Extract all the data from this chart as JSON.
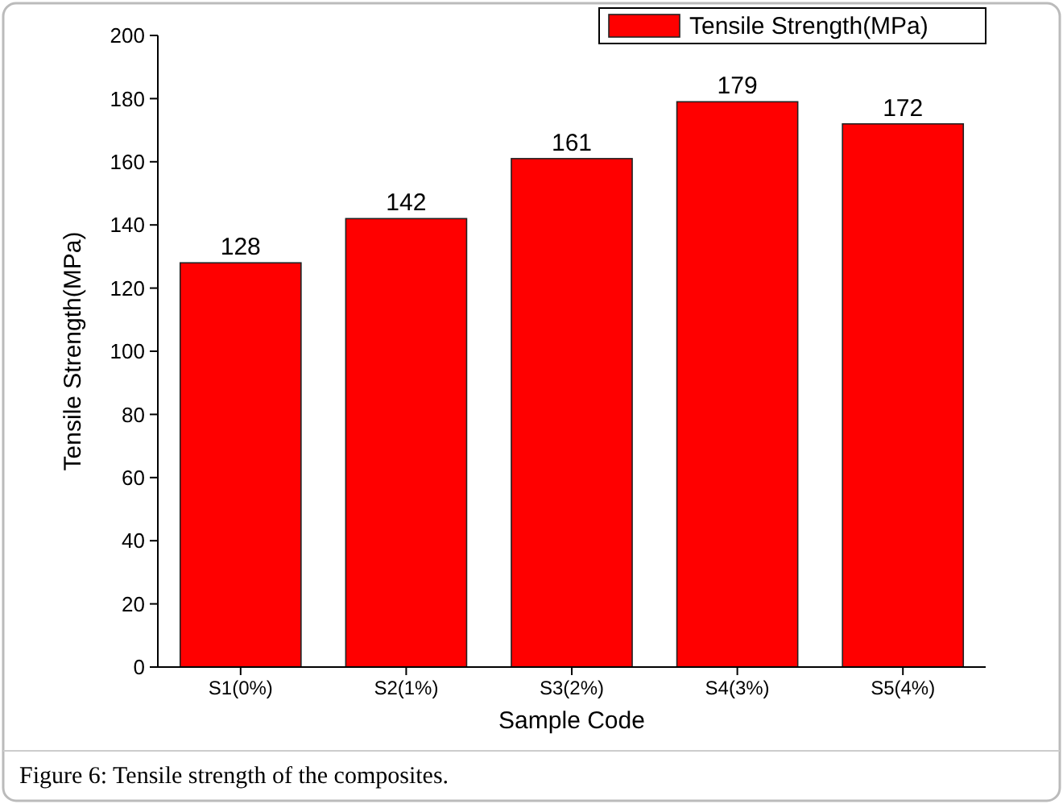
{
  "chart_data": {
    "type": "bar",
    "xlabel": "Sample Code",
    "ylabel": "Tensile Strength(MPa)",
    "categories": [
      "S1(0%)",
      "S2(1%)",
      "S3(2%)",
      "S4(3%)",
      "S5(4%)"
    ],
    "series": [
      {
        "name": "Tensile Strength(MPa)",
        "color": "#ff0000",
        "values": [
          128,
          142,
          161,
          179,
          172
        ]
      }
    ],
    "ylim": [
      0,
      200
    ],
    "yticks": [
      0,
      20,
      40,
      60,
      80,
      100,
      120,
      140,
      160,
      180,
      200
    ],
    "data_labels": true,
    "legend": "top right",
    "grid": false,
    "annotations": [
      "Figure 6: Tensile strength of the composites."
    ]
  }
}
